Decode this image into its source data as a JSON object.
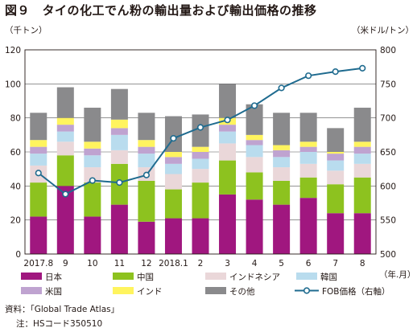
{
  "title": "図９　タイの化工でん粉の輸出量および輸出価格の推移",
  "left_unit": "（千トン）",
  "right_unit": "（米ドル/トン）",
  "x_unit": "（年.月）",
  "source": "資料：「Global Trade Atlas」",
  "note": "注：HSコード350510",
  "colors": {
    "日本": "#a0177f",
    "中国": "#8dc21f",
    "インドネシア": "#ead7d9",
    "韓国": "#b9dcee",
    "米国": "#bfa3d0",
    "インド": "#fff45e",
    "その他": "#8a8a8c",
    "line": "#1f6b8f"
  },
  "chart_data": {
    "type": "bar",
    "stacked": true,
    "categories": [
      "2017.8",
      "9",
      "10",
      "11",
      "12",
      "2018.1",
      "2",
      "3",
      "4",
      "5",
      "6",
      "7",
      "8"
    ],
    "series": [
      {
        "name": "日本",
        "values": [
          22,
          40,
          22,
          29,
          19,
          21,
          21,
          35,
          32,
          29,
          33,
          24,
          24
        ]
      },
      {
        "name": "中国",
        "values": [
          20,
          18,
          20,
          24,
          24,
          17,
          21,
          20,
          16,
          14,
          12,
          17,
          21
        ]
      },
      {
        "name": "インドネシア",
        "values": [
          10,
          8,
          9,
          8,
          8,
          9,
          8,
          10,
          9,
          8,
          8,
          8,
          8
        ]
      },
      {
        "name": "韓国",
        "values": [
          7,
          6,
          7,
          9,
          8,
          6,
          6,
          7,
          7,
          6,
          7,
          6,
          6
        ]
      },
      {
        "name": "米国",
        "values": [
          4,
          4,
          4,
          4,
          4,
          4,
          4,
          4,
          3,
          4,
          3,
          4,
          4
        ]
      },
      {
        "name": "インド",
        "values": [
          4,
          4,
          4,
          5,
          4,
          3,
          3,
          4,
          3,
          3,
          3,
          1,
          3
        ]
      },
      {
        "name": "その他",
        "values": [
          16,
          18,
          20,
          18,
          16,
          21,
          19,
          20,
          18,
          19,
          17,
          14,
          20
        ]
      }
    ],
    "line": {
      "name": "FOB価格（右軸）",
      "values": [
        619,
        588,
        608,
        605,
        616,
        670,
        686,
        697,
        718,
        744,
        762,
        768,
        773
      ]
    },
    "ylim": [
      0,
      120
    ],
    "yticks": [
      0,
      20,
      40,
      60,
      80,
      100,
      120
    ],
    "y2lim": [
      500,
      800
    ],
    "y2ticks": [
      500,
      550,
      600,
      650,
      700,
      750,
      800
    ],
    "legend_position": "bottom"
  }
}
